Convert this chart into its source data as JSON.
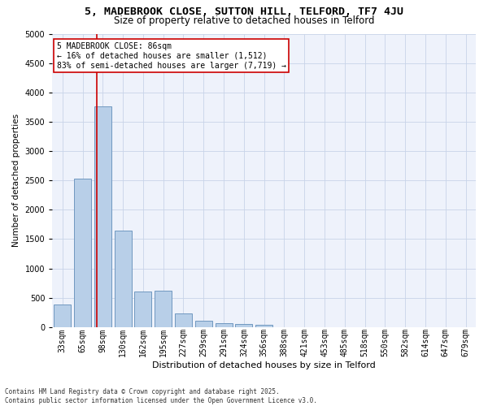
{
  "title1": "5, MADEBROOK CLOSE, SUTTON HILL, TELFORD, TF7 4JU",
  "title2": "Size of property relative to detached houses in Telford",
  "xlabel": "Distribution of detached houses by size in Telford",
  "ylabel": "Number of detached properties",
  "categories": [
    "33sqm",
    "65sqm",
    "98sqm",
    "130sqm",
    "162sqm",
    "195sqm",
    "227sqm",
    "259sqm",
    "291sqm",
    "324sqm",
    "356sqm",
    "388sqm",
    "421sqm",
    "453sqm",
    "485sqm",
    "518sqm",
    "550sqm",
    "582sqm",
    "614sqm",
    "647sqm",
    "679sqm"
  ],
  "values": [
    380,
    2530,
    3760,
    1650,
    600,
    620,
    230,
    110,
    60,
    55,
    40,
    0,
    0,
    0,
    0,
    0,
    0,
    0,
    0,
    0,
    0
  ],
  "bar_color": "#b8cfe8",
  "bar_edge_color": "#7098c0",
  "vline_x": 1.72,
  "vline_color": "#cc0000",
  "annotation_line1": "5 MADEBROOK CLOSE: 86sqm",
  "annotation_line2": "← 16% of detached houses are smaller (1,512)",
  "annotation_line3": "83% of semi-detached houses are larger (7,719) →",
  "annotation_box_edge": "#cc0000",
  "footer1": "Contains HM Land Registry data © Crown copyright and database right 2025.",
  "footer2": "Contains public sector information licensed under the Open Government Licence v3.0.",
  "ylim": [
    0,
    5000
  ],
  "yticks": [
    0,
    500,
    1000,
    1500,
    2000,
    2500,
    3000,
    3500,
    4000,
    4500,
    5000
  ],
  "bg_color": "#eef2fb",
  "grid_color": "#c8d4e8",
  "title1_fontsize": 9.5,
  "title2_fontsize": 8.5,
  "ylabel_fontsize": 7.5,
  "xlabel_fontsize": 8,
  "tick_fontsize": 7,
  "annot_fontsize": 7,
  "footer_fontsize": 5.5
}
